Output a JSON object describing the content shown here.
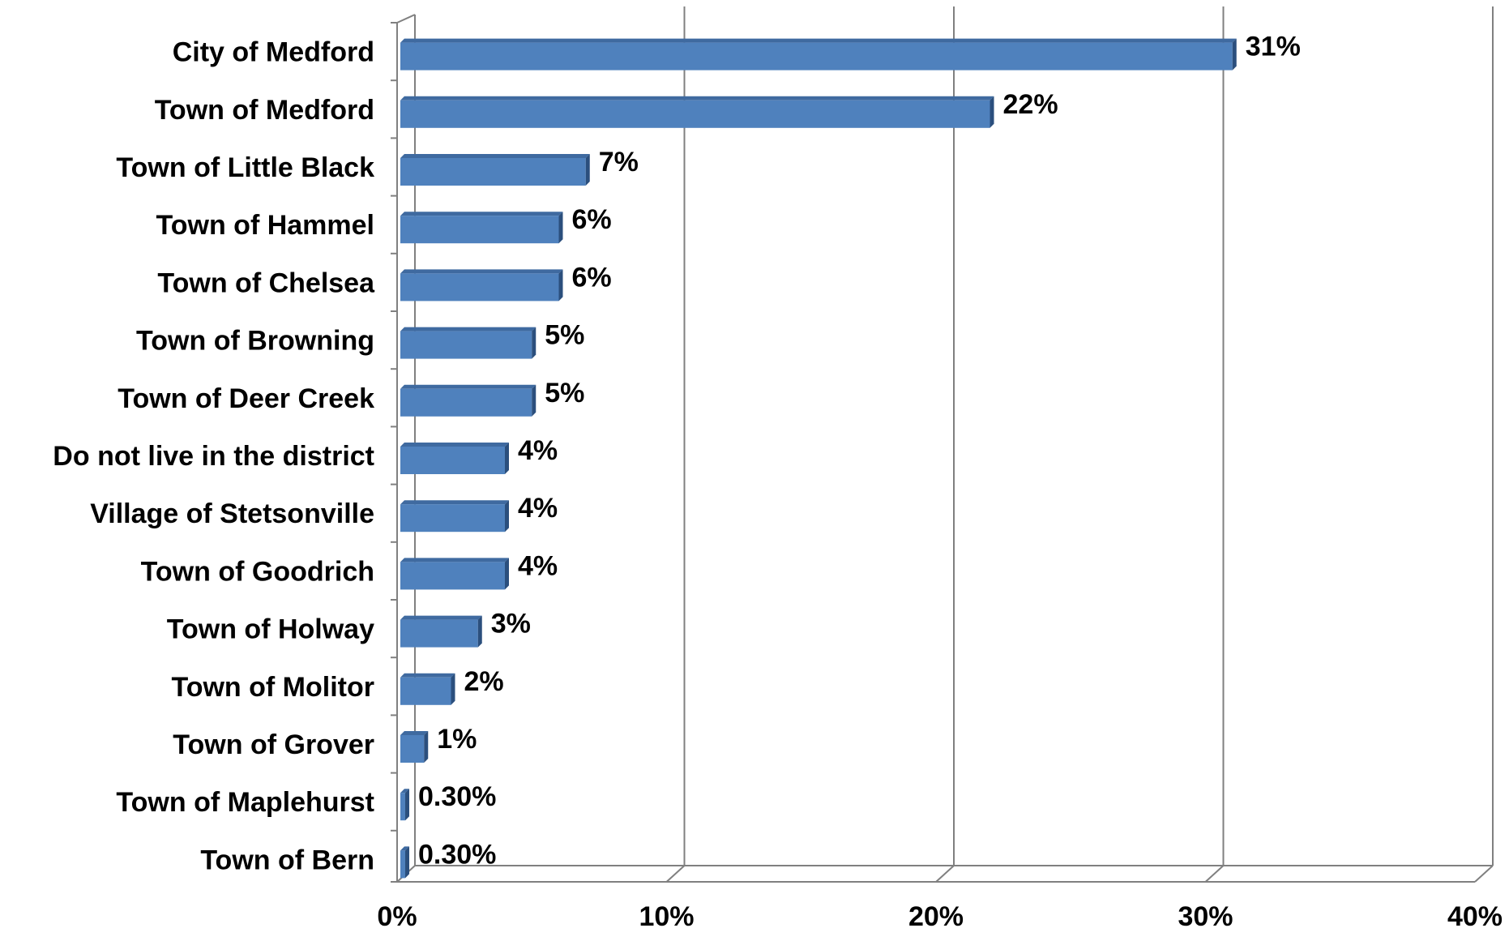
{
  "chart_data": {
    "type": "bar",
    "orientation": "horizontal",
    "style": "3d",
    "categories": [
      "City of Medford",
      "Town of Medford",
      "Town of Little Black",
      "Town of Hammel",
      "Town of Chelsea",
      "Town of Browning",
      "Town of Deer Creek",
      "Do not live in the district",
      "Village of Stetsonville",
      "Town of Goodrich",
      "Town of Holway",
      "Town of Molitor",
      "Town of Grover",
      "Town of Maplehurst",
      "Town of Bern"
    ],
    "values": [
      31,
      22,
      7,
      6,
      6,
      5,
      5,
      4,
      4,
      4,
      3,
      2,
      1,
      0.3,
      0.3
    ],
    "data_labels": [
      "31%",
      "22%",
      "7%",
      "6%",
      "6%",
      "5%",
      "5%",
      "4%",
      "4%",
      "4%",
      "3%",
      "2%",
      "1%",
      "0.30%",
      "0.30%"
    ],
    "x_ticks": [
      "0%",
      "10%",
      "20%",
      "30%",
      "40%"
    ],
    "xlim": [
      0,
      40
    ],
    "xlabel": "",
    "ylabel": "",
    "title": "",
    "grid": true,
    "legend": "none",
    "colors": {
      "bar_front": "#4f81bd",
      "bar_top": "#3f6aa0",
      "bar_side": "#2b4f7d",
      "grid": "#808080"
    }
  }
}
